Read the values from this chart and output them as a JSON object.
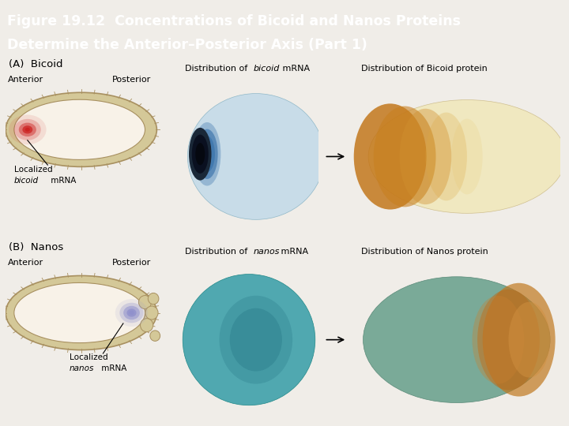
{
  "title_line1": "Figure 19.12  Concentrations of Bicoid and Nanos Proteins",
  "title_line2": "Determine the Anterior–Posterior Axis (Part 1)",
  "title_bg_color": "#3d6b5e",
  "title_text_color": "#ffffff",
  "bg_color": "#f0ede8",
  "section_A_label": "(A)  Bicoid",
  "section_B_label": "(B)  Nanos",
  "anterior_label": "Anterior",
  "posterior_label": "Posterior",
  "egg_outer_color": "#d4c898",
  "egg_outer_edge": "#a89060",
  "egg_inner_color": "#f8f2e8",
  "egg_inner_edge": "#c0aa78",
  "bicoid_spot_color": "#cc2222",
  "nanos_spot_color": "#9090cc",
  "bicoid_mrna_photo_bg": "#b0ccd8",
  "bicoid_mrna_egg_color": "#c8dce8",
  "bicoid_mrna_spot": "#0a0a18",
  "bicoid_protein_photo_bg": "#f0ece0",
  "bicoid_protein_egg_light": "#f0e8c0",
  "bicoid_protein_egg_dark": "#c8901a",
  "nanos_mrna_photo_bg": "#3a9098",
  "nanos_mrna_egg_color": "#50a8b0",
  "nanos_mrna_spot": "#1a4850",
  "nanos_protein_photo_bg": "#309098",
  "nanos_protein_egg_color": "#6a9080",
  "nanos_protein_egg_dark": "#b87820"
}
